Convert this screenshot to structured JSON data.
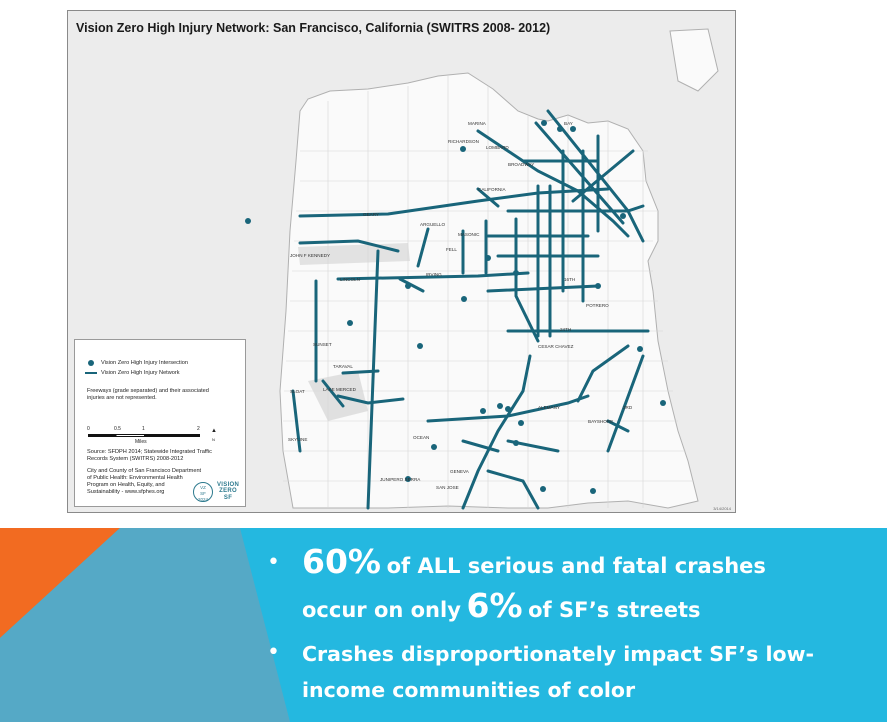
{
  "map": {
    "title": "Vision Zero High Injury Network: San Francisco, California (SWITRS 2008- 2012)",
    "network_color": "#19657a",
    "street_labels": [
      "MARINA",
      "BAY",
      "RICHARDSON",
      "LOMBARD",
      "BROADWAY",
      "CALIFORNIA",
      "GEARY",
      "JOHN F KENNEDY",
      "ARGUELLO",
      "MASONIC",
      "FELL",
      "LINCOLN",
      "IRVING",
      "SUNSET",
      "TARAVAL",
      "SLOAT",
      "LAKE MERCED",
      "SKYLINE",
      "OCEAN",
      "GENEVA",
      "SAN JOSE",
      "JUNIPERO SERRA",
      "ALEMANY",
      "CESAR CHAVEZ",
      "24TH",
      "POTRERO",
      "BAYSHORE",
      "3RD",
      "16TH"
    ],
    "date_mark": "3/14/2014"
  },
  "legend": {
    "intersection_label": "Vision Zero High Injury Intersection",
    "network_label": "Vision Zero High Injury Network",
    "freeway_note_1": "Freeways (grade separated) and their associated",
    "freeway_note_2": "injuries are not represented.",
    "scale_ticks": [
      "0",
      "0.5",
      "1",
      "2"
    ],
    "scale_unit": "Miles",
    "north": "N",
    "source_1": "Source: SFDPH 2014; Statewide Integrated Traffic",
    "source_2": "Records System (SWITRS) 2008-2012",
    "credit_1": "City and County of San Francisco Department",
    "credit_2": "of Public Health: Environmental Health",
    "credit_3": "Program on Health, Equity, and",
    "credit_4": "Sustainability - www.sfphes.org",
    "logo_circle": [
      "VZ",
      "SF",
      "2024"
    ],
    "logo_word": [
      "VISION",
      "ZERO",
      "SF"
    ]
  },
  "banner": {
    "bullet_symbol": "•",
    "b1_big1": "60%",
    "b1_text1": "of ALL serious and fatal crashes",
    "b1_text2": "occur on only",
    "b1_big2": "6%",
    "b1_text3": "of SF’s streets",
    "b2_text1": "Crashes disproportionately impact SF’s low-",
    "b2_text2": "income communities of color",
    "colors": {
      "background": "#24b8e0",
      "orange": "#f26b21",
      "teal": "#55a9c6"
    }
  }
}
